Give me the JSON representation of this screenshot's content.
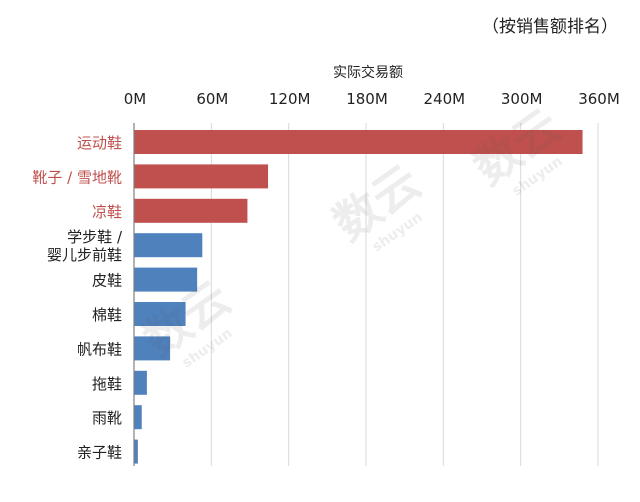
{
  "note": "（按销售额排名）",
  "watermark": {
    "text": "数云",
    "sub": "shuyun"
  },
  "colors": {
    "highlight": "#C0504D",
    "normal": "#4F81BD",
    "grid": "#D9D9D9",
    "axis": "#7F7F7F",
    "text": "#222222"
  },
  "chart_data": {
    "type": "bar",
    "orientation": "horizontal",
    "title": "实际交易额",
    "xlabel": "实际交易额",
    "ylabel": "",
    "xlim": [
      0,
      360
    ],
    "units": "M",
    "x_ticks": [
      "0M",
      "60M",
      "120M",
      "180M",
      "240M",
      "300M",
      "360M"
    ],
    "grid": true,
    "categories": [
      {
        "label": [
          "运动鞋"
        ],
        "value": 348,
        "highlight": true
      },
      {
        "label": [
          "靴子 / 雪地靴"
        ],
        "value": 104,
        "highlight": true
      },
      {
        "label": [
          "凉鞋"
        ],
        "value": 88,
        "highlight": true
      },
      {
        "label": [
          "学步鞋 /",
          "婴儿步前鞋"
        ],
        "value": 53,
        "highlight": false
      },
      {
        "label": [
          "皮鞋"
        ],
        "value": 49,
        "highlight": false
      },
      {
        "label": [
          "棉鞋"
        ],
        "value": 40,
        "highlight": false
      },
      {
        "label": [
          "帆布鞋"
        ],
        "value": 28,
        "highlight": false
      },
      {
        "label": [
          "拖鞋"
        ],
        "value": 10,
        "highlight": false
      },
      {
        "label": [
          "雨靴"
        ],
        "value": 6,
        "highlight": false
      },
      {
        "label": [
          "亲子鞋"
        ],
        "value": 3,
        "highlight": false
      }
    ]
  }
}
